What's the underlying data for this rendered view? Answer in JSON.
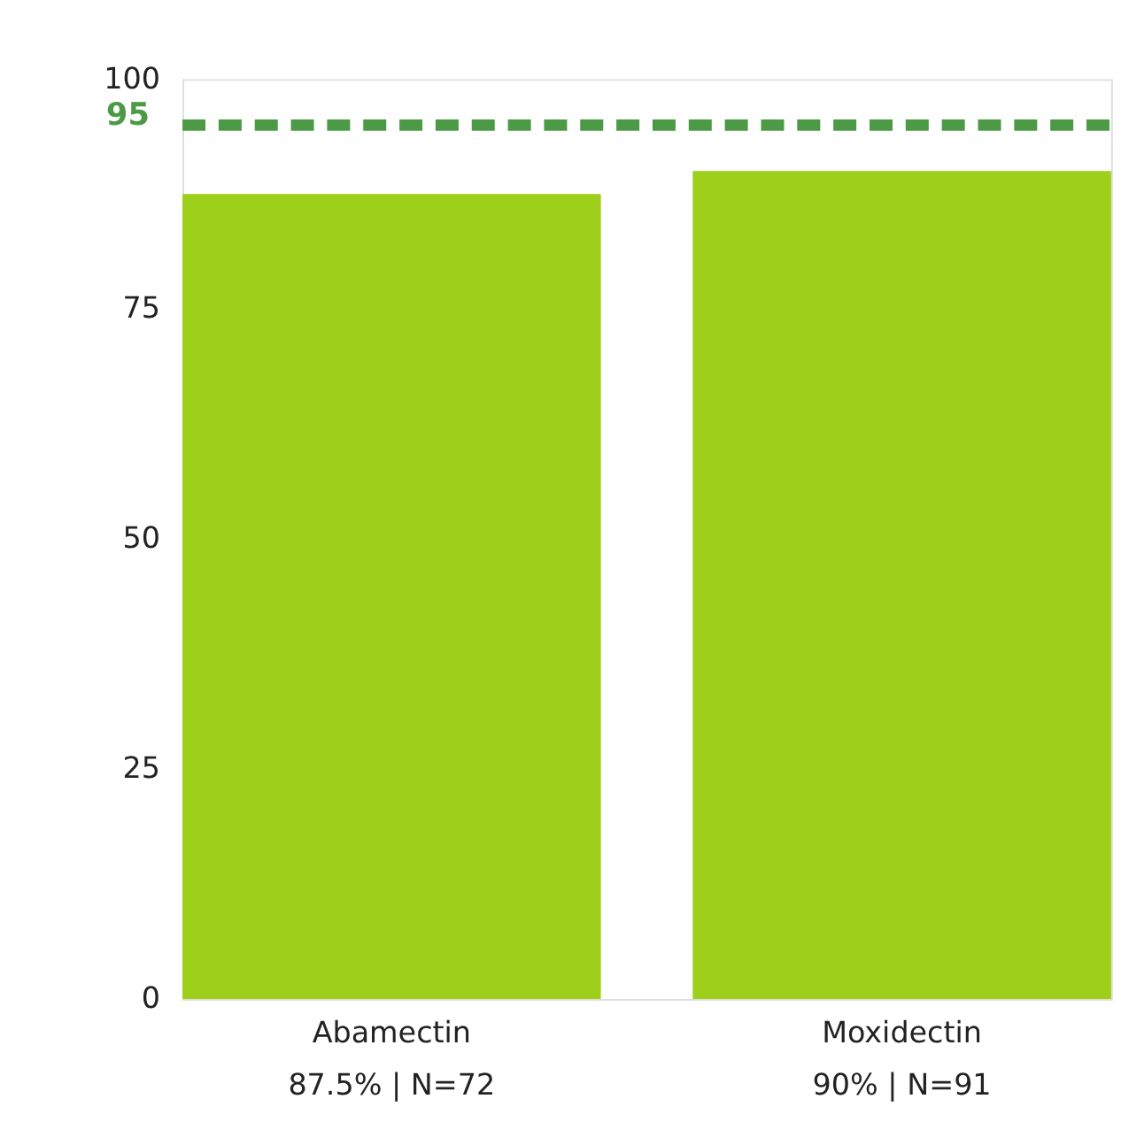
{
  "chart_data": {
    "type": "bar",
    "categories": [
      "Abamectin",
      "Moxidectin"
    ],
    "values": [
      87.5,
      90
    ],
    "value_labels": [
      "87.5% | N=72",
      "90% | N=91"
    ],
    "color": "#9dcf1b",
    "ylim": [
      0,
      100
    ],
    "yticks": [
      0,
      25,
      50,
      75,
      100
    ],
    "grid": false,
    "ref_lines": [
      {
        "axis": "y",
        "value": 95,
        "label": "95",
        "color": "#4c9a45",
        "line_style": "dashed"
      }
    ]
  }
}
